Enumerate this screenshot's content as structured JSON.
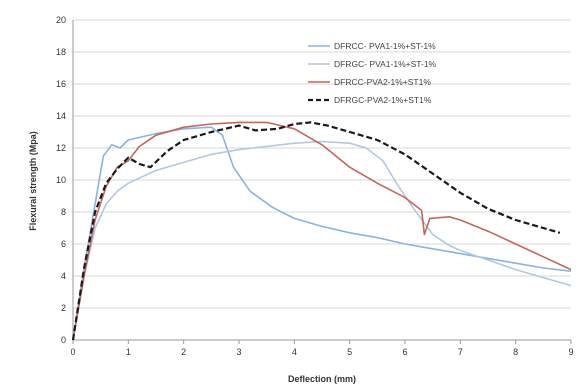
{
  "chart_data": {
    "type": "line",
    "title": "",
    "xlabel": "Deflection (mm)",
    "ylabel": "Flexural strength (Mpa)",
    "xlim": [
      0,
      9
    ],
    "ylim": [
      0,
      20
    ],
    "x_ticks": [
      0,
      1,
      2,
      3,
      4,
      5,
      6,
      7,
      8,
      9
    ],
    "y_ticks": [
      0,
      2,
      4,
      6,
      8,
      10,
      12,
      14,
      16,
      18,
      20
    ],
    "grid": "horizontal",
    "legend_position": "top-right",
    "series": [
      {
        "name": "DFRCC- PVA1-1%+ST-1%",
        "color": "#8ab4dc",
        "dash": "solid",
        "points": [
          [
            0,
            0
          ],
          [
            0.2,
            4.5
          ],
          [
            0.4,
            8.5
          ],
          [
            0.55,
            11.5
          ],
          [
            0.7,
            12.2
          ],
          [
            0.85,
            12.0
          ],
          [
            1.0,
            12.5
          ],
          [
            1.5,
            12.9
          ],
          [
            2.0,
            13.2
          ],
          [
            2.5,
            13.3
          ],
          [
            2.7,
            12.8
          ],
          [
            2.9,
            10.8
          ],
          [
            3.2,
            9.3
          ],
          [
            3.6,
            8.3
          ],
          [
            4.0,
            7.6
          ],
          [
            4.5,
            7.1
          ],
          [
            5.0,
            6.7
          ],
          [
            5.5,
            6.4
          ],
          [
            6.0,
            6.0
          ],
          [
            6.5,
            5.7
          ],
          [
            7.0,
            5.4
          ],
          [
            7.5,
            5.1
          ],
          [
            8.0,
            4.8
          ],
          [
            8.5,
            4.5
          ],
          [
            9.0,
            4.3
          ]
        ]
      },
      {
        "name": "DFRGC- PVA1-1%+ST-1%",
        "color": "#b3c9e0",
        "dash": "solid",
        "points": [
          [
            0,
            0
          ],
          [
            0.2,
            4.0
          ],
          [
            0.4,
            7.0
          ],
          [
            0.6,
            8.5
          ],
          [
            0.8,
            9.3
          ],
          [
            1.0,
            9.8
          ],
          [
            1.5,
            10.6
          ],
          [
            2.0,
            11.1
          ],
          [
            2.5,
            11.6
          ],
          [
            3.0,
            11.9
          ],
          [
            3.5,
            12.1
          ],
          [
            4.0,
            12.3
          ],
          [
            4.5,
            12.4
          ],
          [
            5.0,
            12.3
          ],
          [
            5.3,
            12.0
          ],
          [
            5.6,
            11.2
          ],
          [
            5.9,
            9.5
          ],
          [
            6.2,
            8.0
          ],
          [
            6.5,
            6.6
          ],
          [
            6.8,
            5.9
          ],
          [
            7.0,
            5.6
          ],
          [
            7.5,
            5.0
          ],
          [
            8.0,
            4.4
          ],
          [
            8.5,
            3.9
          ],
          [
            9.0,
            3.4
          ]
        ]
      },
      {
        "name": "DFRCC-PVA2-1%+ST1%",
        "color": "#c4665c",
        "dash": "solid",
        "points": [
          [
            0,
            0
          ],
          [
            0.2,
            4.0
          ],
          [
            0.4,
            7.5
          ],
          [
            0.6,
            9.6
          ],
          [
            0.8,
            10.8
          ],
          [
            1.0,
            11.2
          ],
          [
            1.2,
            12.1
          ],
          [
            1.5,
            12.8
          ],
          [
            2.0,
            13.3
          ],
          [
            2.5,
            13.5
          ],
          [
            3.0,
            13.6
          ],
          [
            3.5,
            13.6
          ],
          [
            4.0,
            13.2
          ],
          [
            4.5,
            12.2
          ],
          [
            5.0,
            10.8
          ],
          [
            5.5,
            9.8
          ],
          [
            6.0,
            8.9
          ],
          [
            6.3,
            8.1
          ],
          [
            6.35,
            6.6
          ],
          [
            6.45,
            7.6
          ],
          [
            6.8,
            7.7
          ],
          [
            7.0,
            7.5
          ],
          [
            7.5,
            6.8
          ],
          [
            8.0,
            6.0
          ],
          [
            8.5,
            5.2
          ],
          [
            9.0,
            4.4
          ]
        ]
      },
      {
        "name": "DFRGC-PVA2-1%+ST1%",
        "color": "#1a1a1a",
        "dash": "dashed",
        "points": [
          [
            0,
            0
          ],
          [
            0.2,
            4.5
          ],
          [
            0.4,
            8.0
          ],
          [
            0.6,
            9.8
          ],
          [
            0.8,
            10.7
          ],
          [
            1.0,
            11.4
          ],
          [
            1.2,
            11.0
          ],
          [
            1.4,
            10.8
          ],
          [
            1.7,
            11.8
          ],
          [
            2.0,
            12.5
          ],
          [
            2.5,
            13.0
          ],
          [
            3.0,
            13.4
          ],
          [
            3.3,
            13.1
          ],
          [
            3.7,
            13.2
          ],
          [
            4.0,
            13.5
          ],
          [
            4.3,
            13.6
          ],
          [
            4.6,
            13.4
          ],
          [
            5.0,
            13.0
          ],
          [
            5.5,
            12.5
          ],
          [
            6.0,
            11.6
          ],
          [
            6.5,
            10.4
          ],
          [
            7.0,
            9.2
          ],
          [
            7.5,
            8.2
          ],
          [
            8.0,
            7.5
          ],
          [
            8.5,
            7.0
          ],
          [
            8.8,
            6.7
          ]
        ]
      }
    ]
  }
}
